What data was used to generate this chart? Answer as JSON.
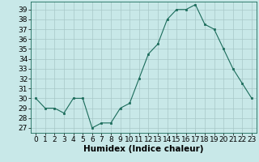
{
  "x": [
    0,
    1,
    2,
    3,
    4,
    5,
    6,
    7,
    8,
    9,
    10,
    11,
    12,
    13,
    14,
    15,
    16,
    17,
    18,
    19,
    20,
    21,
    22,
    23
  ],
  "y": [
    30,
    29,
    29,
    28.5,
    30,
    30,
    27,
    27.5,
    27.5,
    29,
    29.5,
    32,
    34.5,
    35.5,
    38,
    39,
    39,
    39.5,
    37.5,
    37,
    35,
    33,
    31.5,
    30
  ],
  "line_color": "#1a6b5a",
  "marker_color": "#1a6b5a",
  "bg_color": "#c8e8e8",
  "grid_color": "#a8c8c8",
  "xlabel": "Humidex (Indice chaleur)",
  "xlabel_fontsize": 7.5,
  "ylim": [
    26.5,
    39.8
  ],
  "xlim": [
    -0.5,
    23.5
  ],
  "yticks": [
    27,
    28,
    29,
    30,
    31,
    32,
    33,
    34,
    35,
    36,
    37,
    38,
    39
  ],
  "xticks": [
    0,
    1,
    2,
    3,
    4,
    5,
    6,
    7,
    8,
    9,
    10,
    11,
    12,
    13,
    14,
    15,
    16,
    17,
    18,
    19,
    20,
    21,
    22,
    23
  ],
  "tick_fontsize": 6.5
}
